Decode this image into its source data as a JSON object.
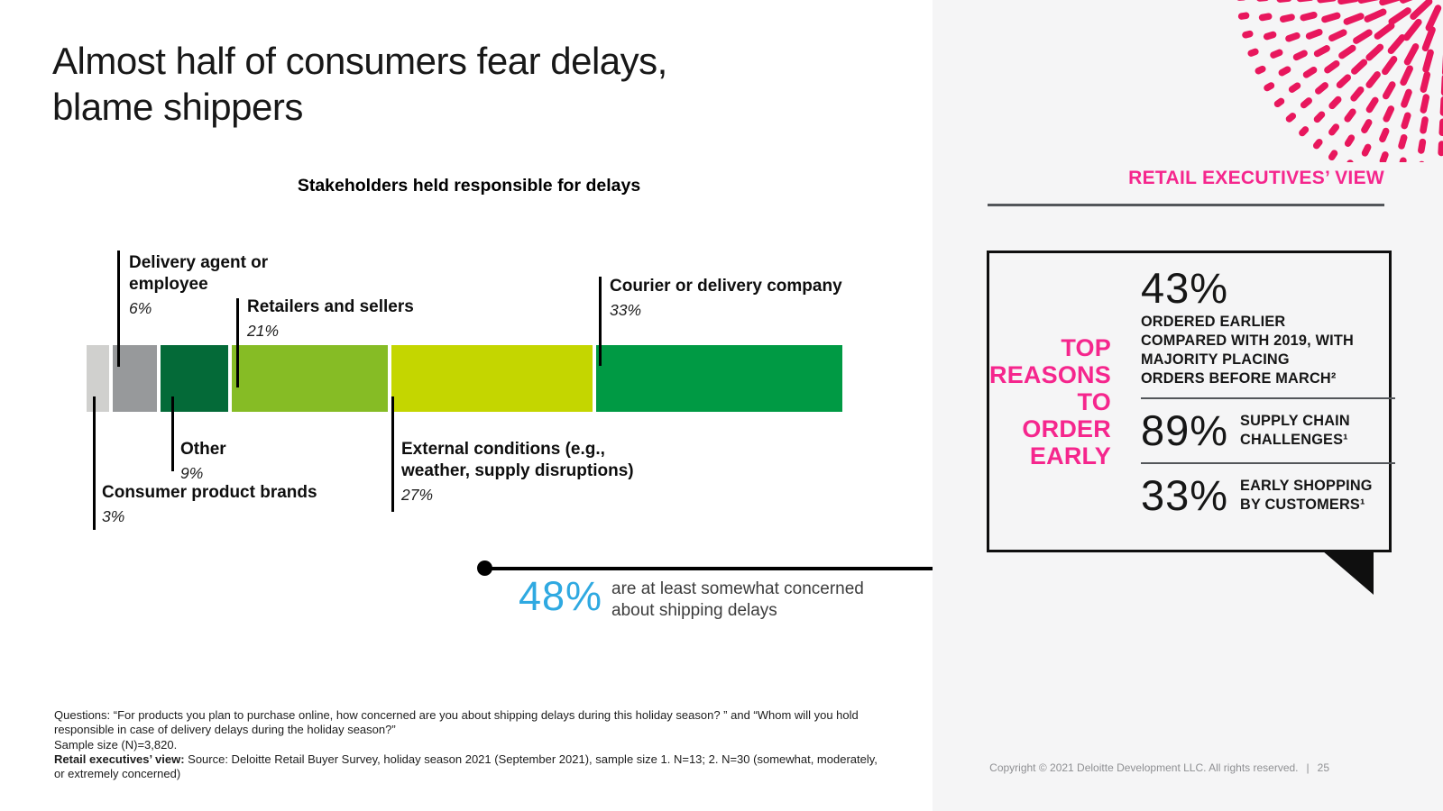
{
  "slide": {
    "title": "Almost half of consumers fear delays,\nblame shippers",
    "copyright": "Copyright © 2021 Deloitte Development LLC. All rights reserved.",
    "copyright_separator": "|",
    "page_number": "25"
  },
  "chart_data": {
    "type": "bar",
    "variant": "horizontal-stacked",
    "title": "Stakeholders held responsible for delays",
    "unit": "percent",
    "categories": [
      "Consumer product brands",
      "Delivery agent or employee",
      "Other",
      "Retailers and sellers",
      "External conditions (e.g., weather, supply disruptions)",
      "Courier or delivery company"
    ],
    "values": [
      3,
      6,
      9,
      21,
      27,
      33
    ],
    "display_values": [
      "3%",
      "6%",
      "9%",
      "21%",
      "27%",
      "33%"
    ],
    "colors": [
      "#D0D0CE",
      "#97999B",
      "#046A38",
      "#86BC25",
      "#C4D600",
      "#009A44"
    ],
    "legend": "none",
    "axes": "none"
  },
  "callout": {
    "value": "48%",
    "description": "are at least somewhat concerned about shipping delays"
  },
  "exec_view": {
    "header": "RETAIL EXECUTIVES’ VIEW",
    "side_label": "TOP\nREASONS\nTO ORDER\nEARLY",
    "stats": [
      {
        "value": "43%",
        "label": "ORDERED EARLIER COMPARED WITH 2019, WITH MAJORITY PLACING ORDERS BEFORE MARCH²"
      },
      {
        "value": "89%",
        "label": "SUPPLY CHAIN CHALLENGES¹"
      },
      {
        "value": "33%",
        "label": "EARLY SHOPPING BY CUSTOMERS¹"
      }
    ]
  },
  "footnotes": {
    "questions": "Questions: “For products you plan to purchase online, how concerned are you about shipping delays during this holiday season? ” and “Whom will you hold responsible in case of delivery delays during the holiday season?”",
    "sample": "Sample size (N)=3,820.",
    "source_bold": "Retail executives’ view:",
    "source_rest": " Source: Deloitte Retail Buyer Survey, holiday season 2021 (September 2021), sample size 1. N=13; 2. N=30 (somewhat, moderately, or extremely concerned)"
  },
  "theme": {
    "pink": "#F5268D",
    "dots_color": "#E8175D",
    "blue": "#2FA9E1",
    "panel_bg": "#F5F5F6",
    "line_gray": "#53565A"
  }
}
